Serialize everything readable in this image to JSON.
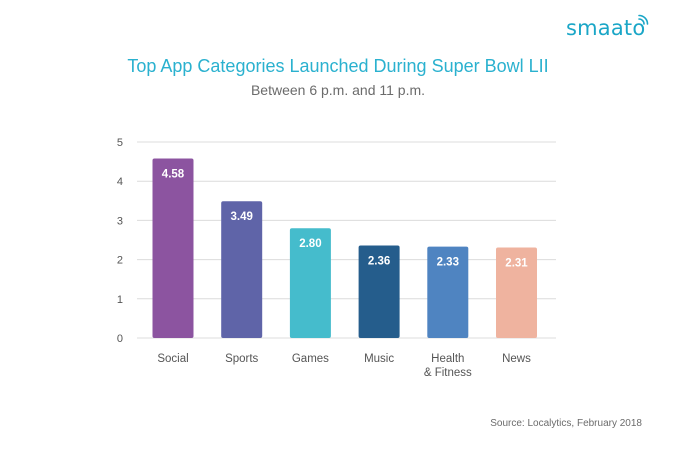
{
  "brand": {
    "name": "smaato",
    "icon": "wifi-signal-icon",
    "color": "#1aa6c7"
  },
  "chart_data": {
    "type": "bar",
    "title": "Top App Categories Launched During Super Bowl LII",
    "subtitle": "Between 6 p.m. and 11 p.m.",
    "categories": [
      [
        "Social"
      ],
      [
        "Sports"
      ],
      [
        "Games"
      ],
      [
        "Music"
      ],
      [
        "Health",
        "& Fitness"
      ],
      [
        "News"
      ]
    ],
    "values": [
      4.58,
      3.49,
      2.8,
      2.36,
      2.33,
      2.31
    ],
    "value_labels": [
      "4.58",
      "3.49",
      "2.80",
      "2.36",
      "2.33",
      "2.31"
    ],
    "colors": [
      "#8c54a0",
      "#5f64a8",
      "#45bccc",
      "#255d8c",
      "#4f84c1",
      "#efb39f"
    ],
    "ylim": [
      0,
      5
    ],
    "yticks": [
      0,
      1,
      2,
      3,
      4,
      5
    ],
    "grid": true,
    "grid_color": "#dcdcdc",
    "xlabel": "",
    "ylabel": "",
    "source": "Source: Localytics, February 2018"
  }
}
